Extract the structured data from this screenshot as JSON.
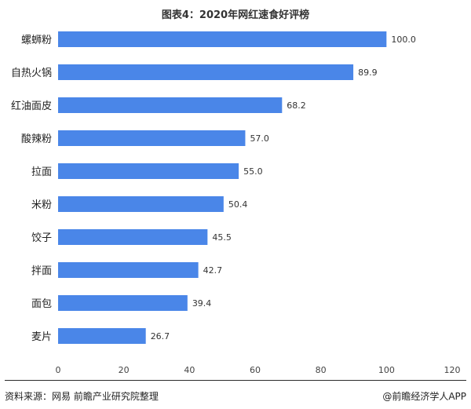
{
  "chart_data": {
    "type": "bar",
    "orientation": "horizontal",
    "title": "图表4：2020年网红速食好评榜",
    "categories": [
      "螺蛳粉",
      "自热火锅",
      "红油面皮",
      "酸辣粉",
      "拉面",
      "米粉",
      "饺子",
      "拌面",
      "面包",
      "麦片"
    ],
    "values": [
      100.0,
      89.9,
      68.2,
      57.0,
      55.0,
      50.4,
      45.5,
      42.7,
      39.4,
      26.7
    ],
    "xlim": [
      0,
      120
    ],
    "xticks": [
      0,
      20,
      40,
      60,
      80,
      100,
      120
    ],
    "xlabel": "",
    "ylabel": "",
    "grid": false,
    "bar_color": "#4a86e8"
  },
  "footer": {
    "source": "资料来源：网易 前瞻产业研究院整理",
    "brand": "@前瞻经济学人APP"
  }
}
